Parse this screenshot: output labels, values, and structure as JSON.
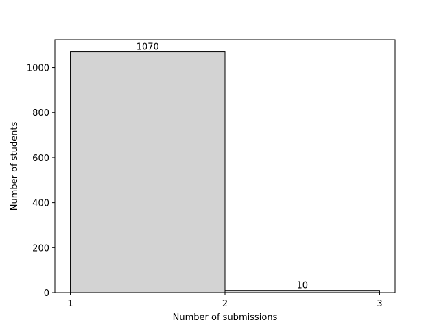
{
  "chart_data": {
    "type": "bar",
    "bins": [
      {
        "x0": 1,
        "x1": 2,
        "value": 1070,
        "label": "1070"
      },
      {
        "x0": 2,
        "x1": 3,
        "value": 10,
        "label": "10"
      }
    ],
    "xlabel": "Number of submissions",
    "ylabel": "Number of students",
    "xlim": [
      0.9,
      3.1
    ],
    "ylim": [
      0,
      1123.5
    ],
    "xticks": [
      "1",
      "2",
      "3"
    ],
    "yticks": [
      "0",
      "200",
      "400",
      "600",
      "800",
      "1000"
    ],
    "grid": false,
    "bar_color": "#d3d3d3",
    "edge_color": "#000000"
  }
}
